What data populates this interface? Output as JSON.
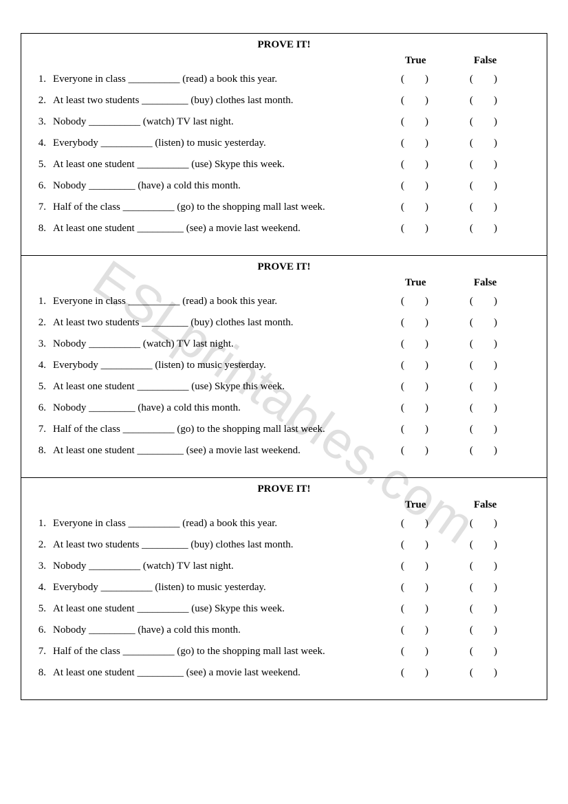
{
  "watermark_text": "ESLprintables.com",
  "sections": [
    {
      "title": "PROVE IT!",
      "true_label": "True",
      "false_label": "False",
      "paren_open": "(",
      "paren_close": ")",
      "questions": [
        {
          "num": "1.",
          "text": "Everyone in class __________ (read) a book this year."
        },
        {
          "num": "2.",
          "text": "At least two students _________ (buy) clothes last month."
        },
        {
          "num": "3.",
          "text": "Nobody __________ (watch) TV last night."
        },
        {
          "num": "4.",
          "text": "Everybody __________ (listen) to music yesterday."
        },
        {
          "num": "5.",
          "text": "At least one student __________ (use) Skype this week."
        },
        {
          "num": "6.",
          "text": "Nobody _________ (have) a cold this month."
        },
        {
          "num": "7.",
          "text": "Half of the class __________ (go) to the shopping mall last week."
        },
        {
          "num": "8.",
          "text": "At least one student _________ (see) a movie last weekend."
        }
      ]
    },
    {
      "title": "PROVE IT!",
      "true_label": "True",
      "false_label": "False",
      "paren_open": "(",
      "paren_close": ")",
      "questions": [
        {
          "num": "1.",
          "text": "Everyone in class __________ (read) a book this year."
        },
        {
          "num": "2.",
          "text": "At least two students _________ (buy) clothes last month."
        },
        {
          "num": "3.",
          "text": "Nobody __________ (watch) TV last night."
        },
        {
          "num": "4.",
          "text": "Everybody __________ (listen) to music yesterday."
        },
        {
          "num": "5.",
          "text": "At least one student __________ (use) Skype this week."
        },
        {
          "num": "6.",
          "text": "Nobody _________ (have) a cold this month."
        },
        {
          "num": "7.",
          "text": "Half of the class __________ (go) to the shopping mall last week."
        },
        {
          "num": "8.",
          "text": "At least one student _________ (see) a movie last weekend."
        }
      ]
    },
    {
      "title": "PROVE IT!",
      "true_label": "True",
      "false_label": "False",
      "paren_open": "(",
      "paren_close": ")",
      "questions": [
        {
          "num": "1.",
          "text": "Everyone in class __________ (read) a book this year."
        },
        {
          "num": "2.",
          "text": "At least two students _________ (buy) clothes last month."
        },
        {
          "num": "3.",
          "text": "Nobody __________ (watch) TV last night."
        },
        {
          "num": "4.",
          "text": "Everybody __________ (listen) to music yesterday."
        },
        {
          "num": "5.",
          "text": "At least one student __________ (use) Skype this week."
        },
        {
          "num": "6.",
          "text": "Nobody _________ (have) a cold this month."
        },
        {
          "num": "7.",
          "text": "Half of the class __________ (go) to the shopping mall last week."
        },
        {
          "num": "8.",
          "text": "At least one student _________ (see) a movie last weekend."
        }
      ]
    }
  ]
}
